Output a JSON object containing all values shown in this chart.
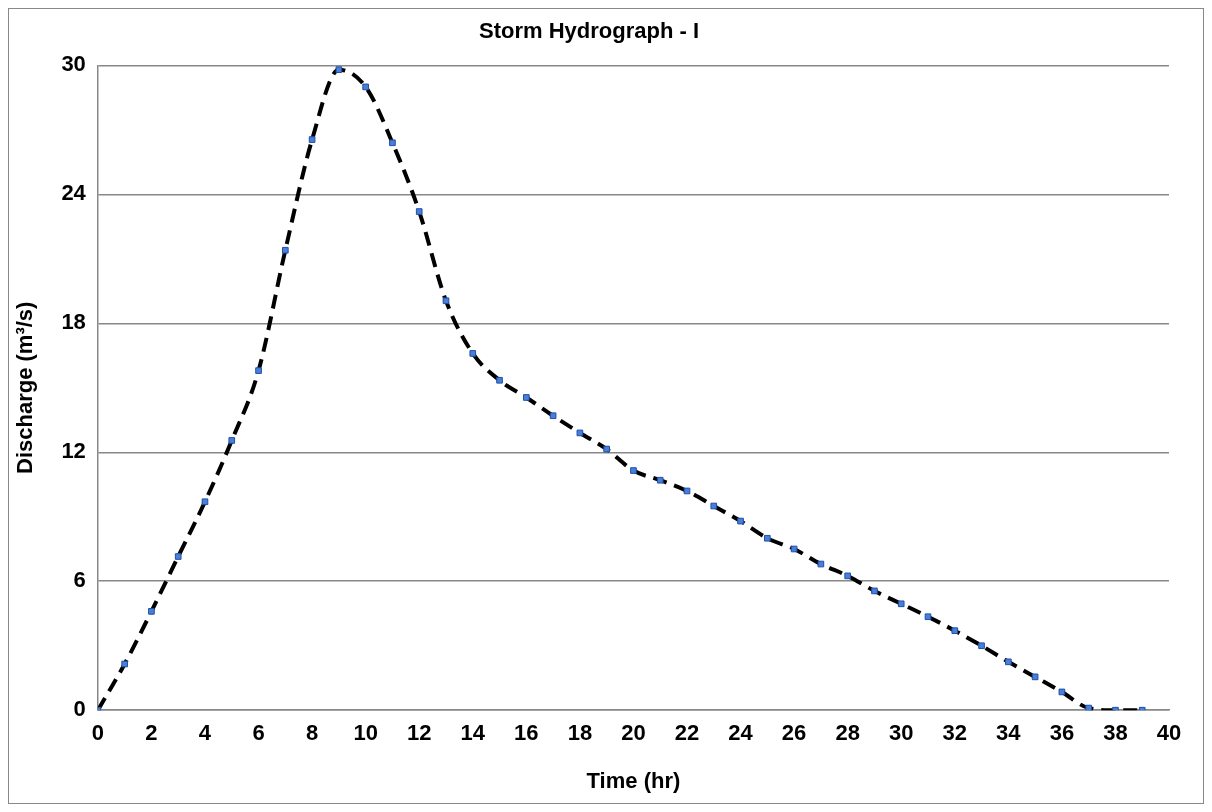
{
  "chart_data": {
    "type": "line",
    "title": "Storm Hydrograph - I",
    "xlabel": "Time (hr)",
    "ylabel": "Discharge (m³/s)",
    "x": [
      0,
      1,
      2,
      3,
      4,
      5,
      6,
      7,
      8,
      9,
      10,
      11,
      12,
      13,
      14,
      15,
      16,
      17,
      18,
      19,
      20,
      21,
      22,
      23,
      24,
      25,
      26,
      27,
      28,
      29,
      30,
      31,
      32,
      33,
      34,
      35,
      36,
      37,
      38,
      39
    ],
    "series": [
      {
        "color": "#000000",
        "values": [
          0,
          2.15,
          4.6,
          7.15,
          9.7,
          12.55,
          15.8,
          21.4,
          26.55,
          29.8,
          29,
          26.4,
          23.2,
          19.05,
          16.6,
          15.35,
          14.55,
          13.7,
          12.9,
          12.15,
          11.15,
          10.7,
          10.2,
          9.5,
          8.8,
          8.0,
          7.5,
          6.8,
          6.25,
          5.55,
          4.95,
          4.35,
          3.7,
          3.0,
          2.25,
          1.55,
          0.85,
          0.1,
          0,
          0
        ]
      }
    ],
    "xlim": [
      0,
      40
    ],
    "xticks": [
      0,
      2,
      4,
      6,
      8,
      10,
      12,
      14,
      16,
      18,
      20,
      22,
      24,
      26,
      28,
      30,
      32,
      34,
      36,
      38,
      40
    ],
    "ylim": [
      0,
      30
    ],
    "yticks": [
      0,
      6,
      12,
      18,
      24,
      30
    ],
    "grid": "y",
    "legend": false,
    "marker": "square",
    "line_style": "dashed"
  }
}
